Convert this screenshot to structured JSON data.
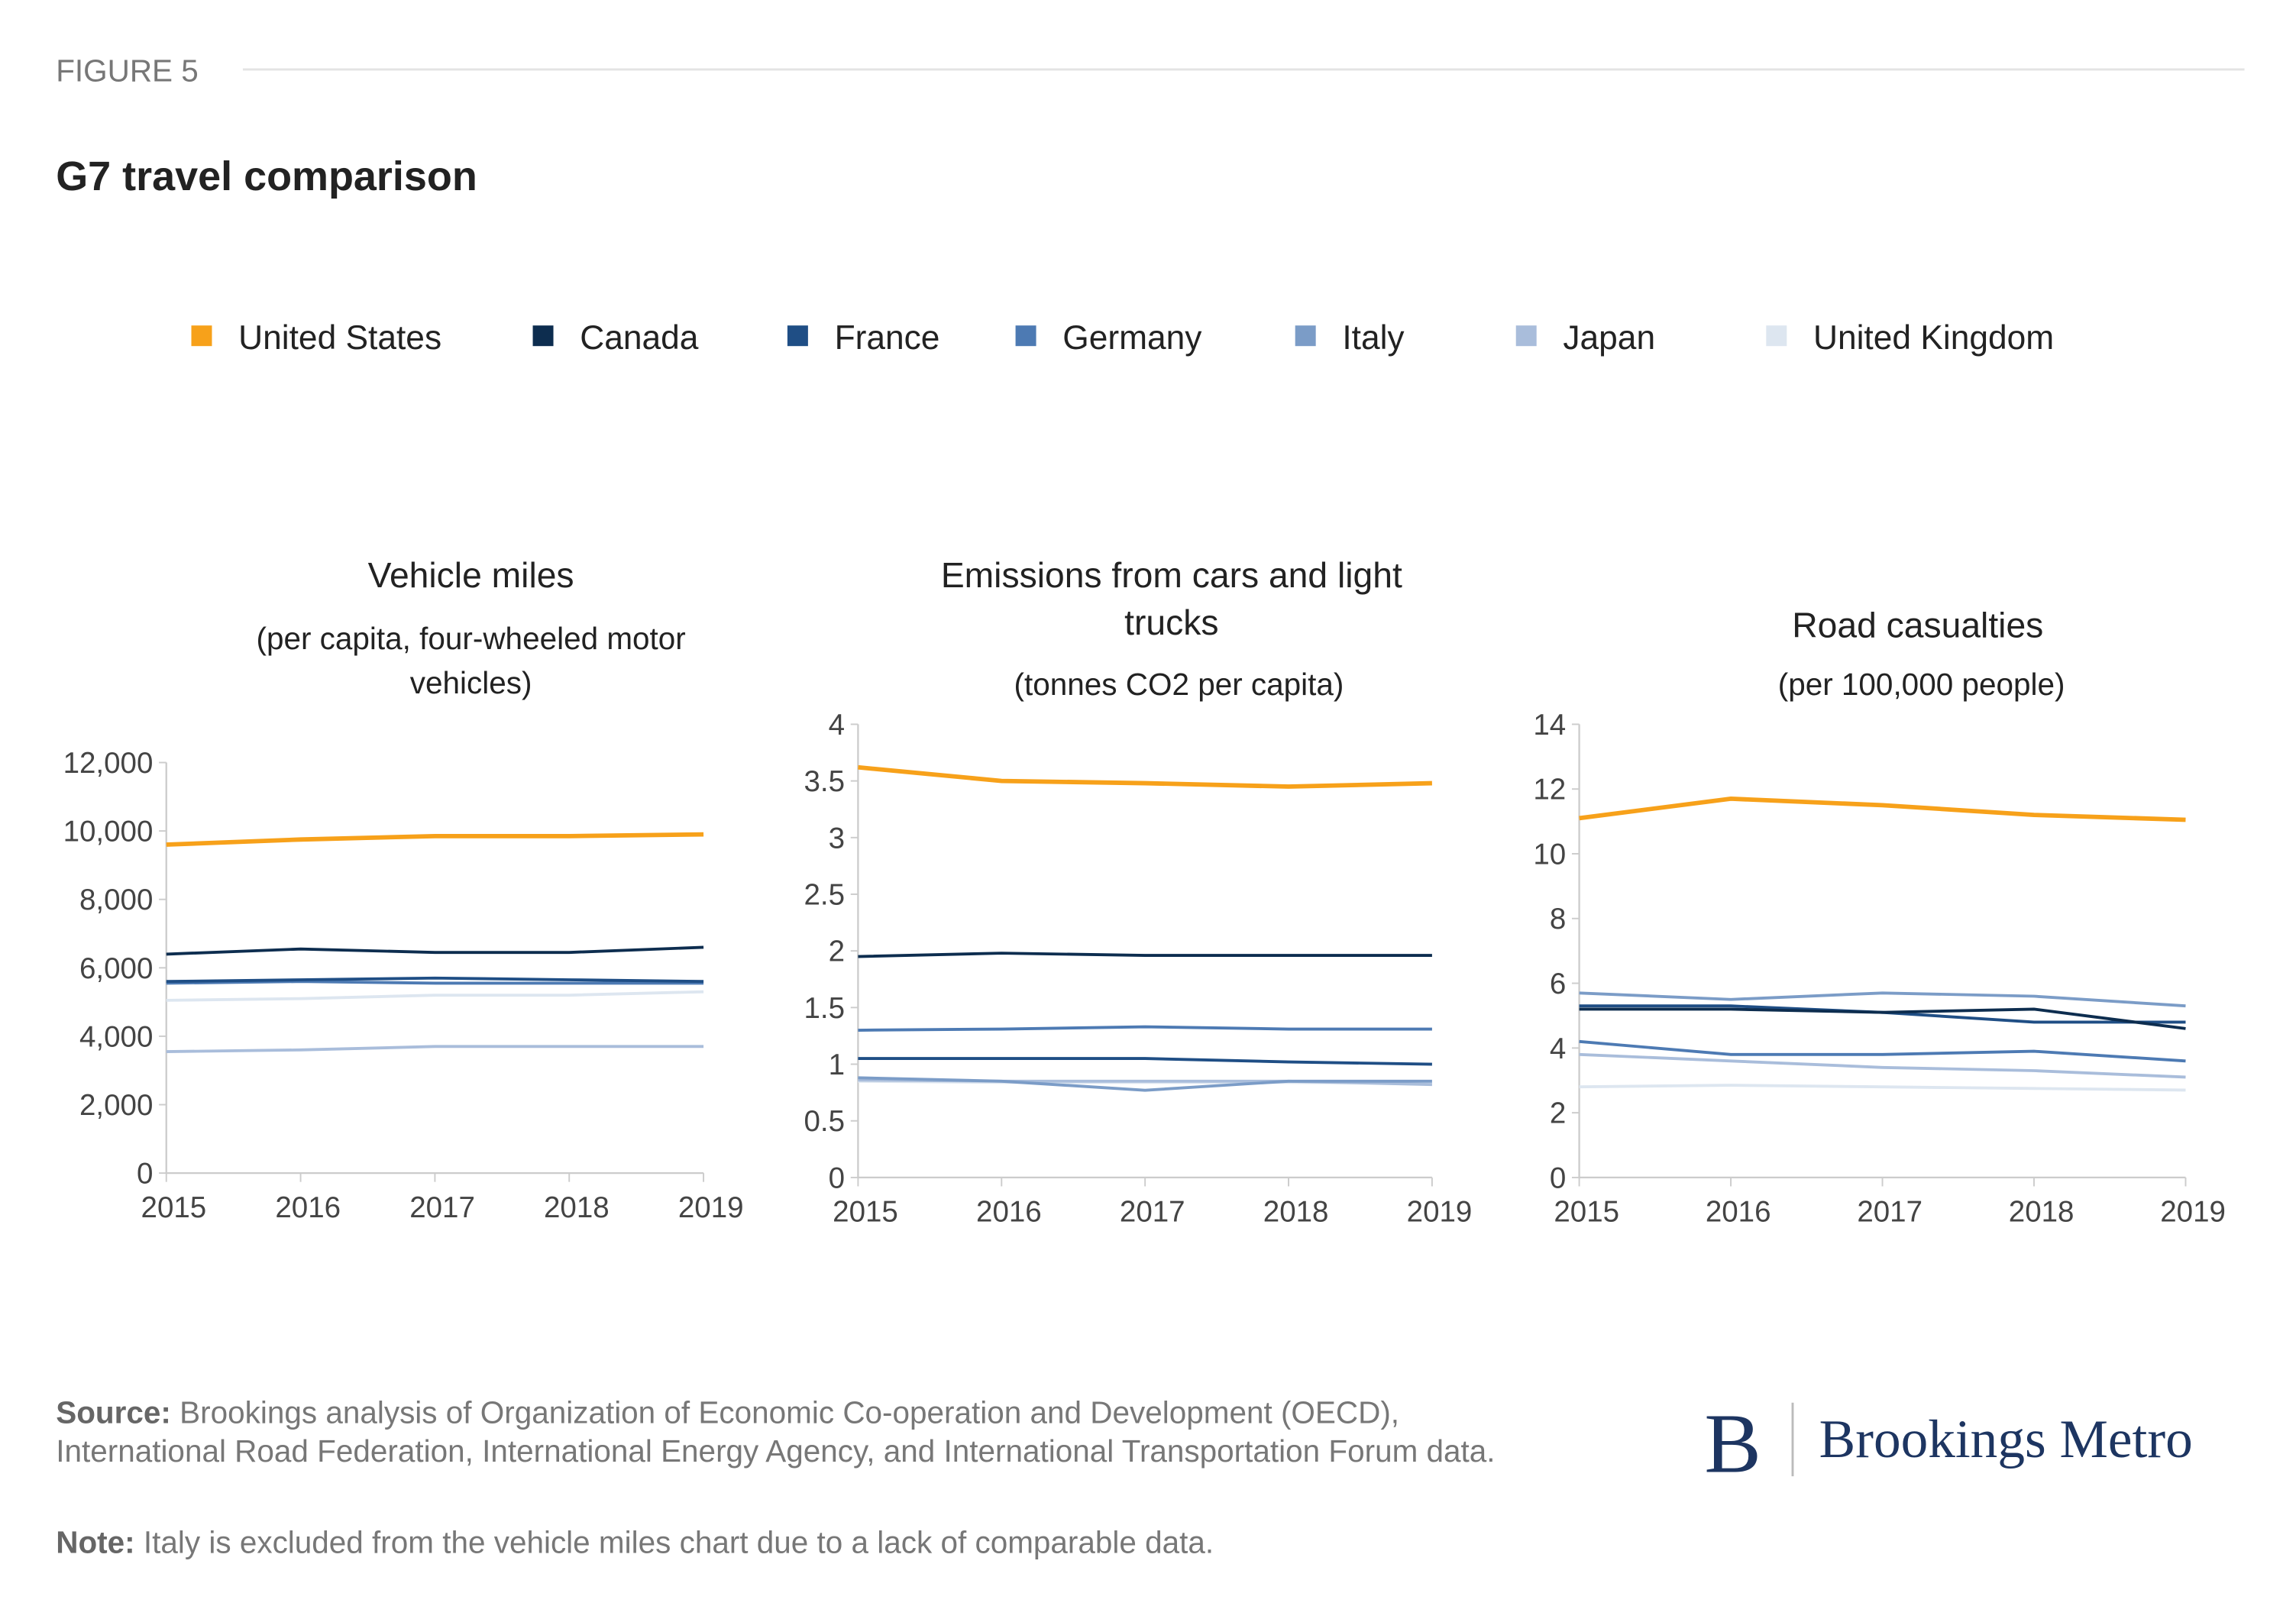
{
  "figure_label": "FIGURE 5",
  "title": "G7 travel comparison",
  "source_label": "Source:",
  "source": "Brookings analysis of Organization of Economic Co-operation and Development (OECD), International Road Federation, International Energy Agency, and International Transportation Forum data.",
  "note_label": "Note:",
  "note": "Italy is excluded from the vehicle miles chart due to a lack of comparable data.",
  "logo_letter": "B",
  "logo": "Brookings Metro",
  "chart_data": [
    {
      "type": "line",
      "title": "Vehicle miles",
      "subtitle": "(per capita, four-wheeled motor vehicles)",
      "x": [
        2015,
        2016,
        2017,
        2018,
        2019
      ],
      "xlim": [
        2015,
        2019
      ],
      "xticks": [
        2015,
        2016,
        2017,
        2018,
        2019
      ],
      "ylim": [
        0,
        12000
      ],
      "yticks": [
        0,
        {
          "value": 2000,
          "label": "2,000"
        },
        {
          "value": 4000,
          "label": "4,000"
        },
        {
          "value": 6000,
          "label": "6,000"
        },
        {
          "value": 8000,
          "label": "8,000"
        },
        {
          "value": 10000,
          "label": "10,000"
        },
        {
          "value": 12000,
          "label": "12,000"
        }
      ],
      "series": [
        {
          "name": "United States",
          "color": "#f7a11a",
          "values": [
            9600,
            9750,
            9850,
            9850,
            9900
          ]
        },
        {
          "name": "Canada",
          "color": "#0d2d4f",
          "values": [
            6400,
            6550,
            6450,
            6450,
            6600
          ]
        },
        {
          "name": "France",
          "color": "#1f4e85",
          "values": [
            5600,
            5650,
            5700,
            5650,
            5600
          ]
        },
        {
          "name": "Germany",
          "color": "#4d7ab3",
          "values": [
            5550,
            5600,
            5550,
            5550,
            5550
          ]
        },
        {
          "name": "Japan",
          "color": "#a9bddb",
          "values": [
            3550,
            3600,
            3700,
            3700,
            3700
          ]
        },
        {
          "name": "United Kingdom",
          "color": "#dde6f0",
          "values": [
            5050,
            5100,
            5200,
            5200,
            5300
          ]
        }
      ]
    },
    {
      "type": "line",
      "title": "Emissions from cars and light trucks",
      "subtitle": "(tonnes CO2 per capita)",
      "x": [
        2015,
        2016,
        2017,
        2018,
        2019
      ],
      "xlim": [
        2015,
        2019
      ],
      "xticks": [
        2015,
        2016,
        2017,
        2018,
        2019
      ],
      "ylim": [
        0,
        4
      ],
      "yticks": [
        0,
        0.5,
        1,
        1.5,
        2,
        2.5,
        3,
        3.5,
        4
      ],
      "series": [
        {
          "name": "United States",
          "color": "#f7a11a",
          "values": [
            3.62,
            3.5,
            3.48,
            3.45,
            3.48
          ]
        },
        {
          "name": "Canada",
          "color": "#0d2d4f",
          "values": [
            1.95,
            1.98,
            1.96,
            1.96,
            1.96
          ]
        },
        {
          "name": "France",
          "color": "#1f4e85",
          "values": [
            1.05,
            1.05,
            1.05,
            1.02,
            1.0
          ]
        },
        {
          "name": "Germany",
          "color": "#4d7ab3",
          "values": [
            1.3,
            1.31,
            1.33,
            1.31,
            1.31
          ]
        },
        {
          "name": "Italy",
          "color": "#7b9cc7",
          "values": [
            0.88,
            0.85,
            0.77,
            0.85,
            0.85
          ]
        },
        {
          "name": "Japan",
          "color": "#a9bddb",
          "values": [
            0.86,
            0.85,
            0.85,
            0.85,
            0.82
          ]
        },
        {
          "name": "United Kingdom",
          "color": "#dde6f0",
          "values": [
            0.85,
            0.84,
            0.84,
            0.84,
            0.83
          ]
        }
      ]
    },
    {
      "type": "line",
      "title": "Road casualties",
      "subtitle": "(per 100,000 people)",
      "x": [
        2015,
        2016,
        2017,
        2018,
        2019
      ],
      "xlim": [
        2015,
        2019
      ],
      "xticks": [
        2015,
        2016,
        2017,
        2018,
        2019
      ],
      "ylim": [
        0,
        14
      ],
      "yticks": [
        0,
        2,
        4,
        6,
        8,
        10,
        12,
        14
      ],
      "series": [
        {
          "name": "United States",
          "color": "#f7a11a",
          "values": [
            11.1,
            11.7,
            11.5,
            11.2,
            11.05
          ]
        },
        {
          "name": "Canada",
          "color": "#0d2d4f",
          "values": [
            5.2,
            5.2,
            5.1,
            5.2,
            4.6
          ]
        },
        {
          "name": "France",
          "color": "#1f4e85",
          "values": [
            5.3,
            5.3,
            5.1,
            4.8,
            4.8
          ]
        },
        {
          "name": "Germany",
          "color": "#4d7ab3",
          "values": [
            4.2,
            3.8,
            3.8,
            3.9,
            3.6
          ]
        },
        {
          "name": "Italy",
          "color": "#7b9cc7",
          "values": [
            5.7,
            5.5,
            5.7,
            5.6,
            5.3
          ]
        },
        {
          "name": "Japan",
          "color": "#a9bddb",
          "values": [
            3.8,
            3.6,
            3.4,
            3.3,
            3.1
          ]
        },
        {
          "name": "United Kingdom",
          "color": "#dde6f0",
          "values": [
            2.8,
            2.85,
            2.8,
            2.75,
            2.7
          ]
        }
      ]
    }
  ]
}
